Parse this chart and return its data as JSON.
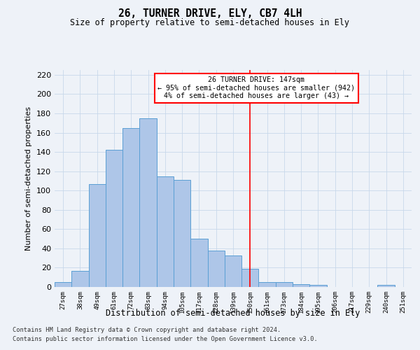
{
  "title": "26, TURNER DRIVE, ELY, CB7 4LH",
  "subtitle": "Size of property relative to semi-detached houses in Ely",
  "xlabel": "Distribution of semi-detached houses by size in Ely",
  "ylabel": "Number of semi-detached properties",
  "categories": [
    "27sqm",
    "38sqm",
    "49sqm",
    "61sqm",
    "72sqm",
    "83sqm",
    "94sqm",
    "105sqm",
    "117sqm",
    "128sqm",
    "139sqm",
    "150sqm",
    "161sqm",
    "173sqm",
    "184sqm",
    "195sqm",
    "206sqm",
    "217sqm",
    "229sqm",
    "240sqm",
    "251sqm"
  ],
  "values": [
    5,
    17,
    107,
    142,
    165,
    175,
    115,
    111,
    50,
    38,
    33,
    19,
    5,
    5,
    3,
    2,
    0,
    0,
    0,
    2,
    0
  ],
  "bar_color": "#aec6e8",
  "bar_edge_color": "#5a9fd4",
  "grid_color": "#c8d8ea",
  "background_color": "#eef2f8",
  "vline_x_index": 11,
  "vline_color": "red",
  "annotation_title": "26 TURNER DRIVE: 147sqm",
  "annotation_line2": "← 95% of semi-detached houses are smaller (942)",
  "annotation_line3": "4% of semi-detached houses are larger (43) →",
  "ylim": [
    0,
    225
  ],
  "yticks": [
    0,
    20,
    40,
    60,
    80,
    100,
    120,
    140,
    160,
    180,
    200,
    220
  ],
  "footnote1": "Contains HM Land Registry data © Crown copyright and database right 2024.",
  "footnote2": "Contains public sector information licensed under the Open Government Licence v3.0."
}
